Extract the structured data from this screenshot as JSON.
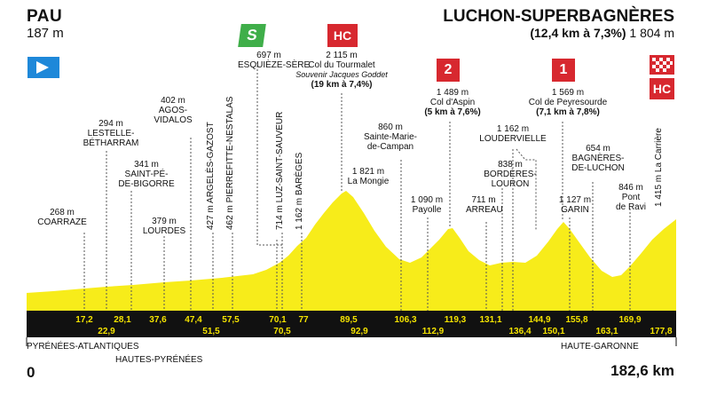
{
  "start": {
    "name": "PAU",
    "altitude": "187 m"
  },
  "finish": {
    "name": "LUCHON-SUPERBAGNÈRES",
    "climb": "(12,4 km à 7,3%)",
    "altitude": "1 804 m"
  },
  "badges": {
    "sprint": "S",
    "hc": "HC",
    "cat2": "2",
    "cat1": "1",
    "finish_hc": "HC"
  },
  "points": [
    {
      "alt": "268 m",
      "name": "COARRAZE"
    },
    {
      "alt": "294 m",
      "name": "LESTELLE-\nBÉTHARRAM"
    },
    {
      "alt": "341 m",
      "name": "SAINT-PÉ-\nDE-BIGORRE"
    },
    {
      "alt": "379 m",
      "name": "LOURDES"
    },
    {
      "alt": "402 m",
      "name": "AGOS-\nVIDALOS"
    },
    {
      "alt": "697 m",
      "name": "ESQUIÈZE-SÈRE"
    },
    {
      "alt": "2 115 m",
      "name": "Col du Tourmalet"
    },
    {
      "alt": "1 821 m",
      "name": "La Mongie"
    },
    {
      "alt": "860 m",
      "name": "Sainte-Marie-\nde-Campan"
    },
    {
      "alt": "1 090 m",
      "name": "Payolle"
    },
    {
      "alt": "1 489 m",
      "name": "Col d'Aspin"
    },
    {
      "alt": "711 m",
      "name": "ARREAU"
    },
    {
      "alt": "838 m",
      "name": "BORDÈRES-\nLOURON"
    },
    {
      "alt": "1 162 m",
      "name": "LOUDERVIELLE"
    },
    {
      "alt": "1 569 m",
      "name": "Col de Peyresourde"
    },
    {
      "alt": "1 127 m",
      "name": "GARIN"
    },
    {
      "alt": "654 m",
      "name": "BAGNÈRES-\nDE-LUCHON"
    },
    {
      "alt": "846 m",
      "name": "Pont\nde Ravi"
    }
  ],
  "souvenir": "Souvenir Jacques Goddet",
  "climbs": {
    "tourmalet": "(19 km à 7,4%)",
    "aspin": "(5 km à 7,6%)",
    "peyresourde": "(7,1 km à 7,8%)"
  },
  "vertical_labels": [
    "427 m ARGELÈS-GAZOST",
    "462 m PIERREFITTE-NESTALAS",
    "714 m LUZ-SAINT-SAUVEUR",
    "1 162 m BARÈGES",
    "1 415 m La Carrière"
  ],
  "km_top": [
    "17,2",
    "28,1",
    "37,6",
    "47,4",
    "57,5",
    "70,1",
    "77",
    "89,5",
    "106,3",
    "119,3",
    "131,1",
    "144,9",
    "155,8",
    "169,9"
  ],
  "km_bottom": [
    "22,9",
    "51,5",
    "70,5",
    "92,9",
    "112,9",
    "136,4",
    "150,1",
    "163,1",
    "177,8"
  ],
  "regions": [
    "PYRÉNÉES-ATLANTIQUES",
    "HAUTES-PYRÉNÉES",
    "HAUTE-GARONNE"
  ],
  "distance": {
    "start": "0",
    "end": "182,6 km"
  },
  "colors": {
    "profile": "#f7ec1a",
    "bar": "#111111",
    "km_text": "#f5e400",
    "sprint": "#3fae49",
    "climb": "#d7282f",
    "start_flag": "#1e88d9"
  }
}
